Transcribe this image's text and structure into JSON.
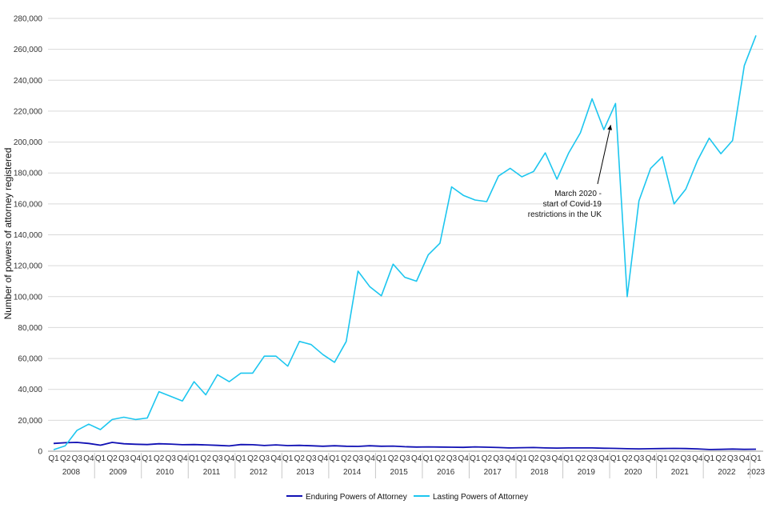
{
  "chart_data": {
    "type": "line",
    "title": "",
    "ylabel": "Number of powers of attorney registered",
    "xlabel": "",
    "ylim": [
      0,
      280000
    ],
    "yticks": [
      "0",
      "20,000",
      "40,000",
      "60,000",
      "80,000",
      "100,000",
      "120,000",
      "140,000",
      "160,000",
      "180,000",
      "200,000",
      "220,000",
      "240,000",
      "260,000",
      "280,000"
    ],
    "grid": "horizontal",
    "legend_position": "bottom",
    "categories": [
      "Q1",
      "Q2",
      "Q3",
      "Q4",
      "Q1",
      "Q2",
      "Q3",
      "Q4",
      "Q1",
      "Q2",
      "Q3",
      "Q4",
      "Q1",
      "Q2",
      "Q3",
      "Q4",
      "Q1",
      "Q2",
      "Q3",
      "Q4",
      "Q1",
      "Q2",
      "Q3",
      "Q4",
      "Q1",
      "Q2",
      "Q3",
      "Q4",
      "Q1",
      "Q2",
      "Q3",
      "Q4",
      "Q1",
      "Q2",
      "Q3",
      "Q4",
      "Q1",
      "Q2",
      "Q3",
      "Q4",
      "Q1",
      "Q2",
      "Q3",
      "Q4",
      "Q1",
      "Q2",
      "Q3",
      "Q4",
      "Q1",
      "Q2",
      "Q3",
      "Q4",
      "Q1",
      "Q2",
      "Q3",
      "Q4",
      "Q1",
      "Q2",
      "Q3",
      "Q4",
      "Q1"
    ],
    "years": [
      {
        "label": "2008",
        "start": 0,
        "count": 4
      },
      {
        "label": "2009",
        "start": 4,
        "count": 4
      },
      {
        "label": "2010",
        "start": 8,
        "count": 4
      },
      {
        "label": "2011",
        "start": 12,
        "count": 4
      },
      {
        "label": "2012",
        "start": 16,
        "count": 4
      },
      {
        "label": "2013",
        "start": 20,
        "count": 4
      },
      {
        "label": "2014",
        "start": 24,
        "count": 4
      },
      {
        "label": "2015",
        "start": 28,
        "count": 4
      },
      {
        "label": "2016",
        "start": 32,
        "count": 4
      },
      {
        "label": "2017",
        "start": 36,
        "count": 4
      },
      {
        "label": "2018",
        "start": 40,
        "count": 4
      },
      {
        "label": "2019",
        "start": 44,
        "count": 4
      },
      {
        "label": "2020",
        "start": 48,
        "count": 4
      },
      {
        "label": "2021",
        "start": 52,
        "count": 4
      },
      {
        "label": "2022",
        "start": 56,
        "count": 4
      },
      {
        "label": "2023",
        "start": 60,
        "count": 1
      }
    ],
    "series": [
      {
        "name": "Enduring Powers of Attorney",
        "color": "#1010b4",
        "values": [
          5000,
          5500,
          5700,
          5000,
          3900,
          5700,
          4800,
          4500,
          4300,
          4800,
          4600,
          4200,
          4300,
          4100,
          3800,
          3400,
          4300,
          4200,
          3700,
          4100,
          3600,
          3800,
          3500,
          3200,
          3500,
          3200,
          3100,
          3500,
          3200,
          3300,
          2900,
          2700,
          2800,
          2700,
          2600,
          2500,
          2800,
          2600,
          2400,
          2100,
          2300,
          2400,
          2100,
          2000,
          2100,
          2100,
          2100,
          1900,
          1800,
          1600,
          1500,
          1600,
          1700,
          1800,
          1700,
          1500,
          1100,
          1200,
          1400,
          1200,
          1300
        ]
      },
      {
        "name": "Lasting Powers of Attorney",
        "color": "#1cc6ef",
        "values": [
          1000,
          3500,
          13500,
          17500,
          14000,
          20500,
          22000,
          20500,
          21500,
          38500,
          35500,
          32500,
          45000,
          36500,
          49500,
          45000,
          50500,
          50500,
          61500,
          61500,
          55000,
          71000,
          69000,
          62500,
          57500,
          71000,
          116500,
          106500,
          100500,
          121000,
          112500,
          110000,
          127000,
          134500,
          171000,
          165500,
          162500,
          161500,
          178000,
          183000,
          177500,
          181000,
          193000,
          176000,
          193000,
          206000,
          228000,
          208000,
          225000,
          100000,
          162000,
          183000,
          190500,
          160000,
          169500,
          188000,
          202500,
          192500,
          201000,
          249500,
          269000
        ]
      }
    ],
    "annotation": {
      "lines": [
        "March 2020 -",
        "start of Covid-19",
        "restrictions in the UK"
      ],
      "points_to_index": 48
    }
  }
}
